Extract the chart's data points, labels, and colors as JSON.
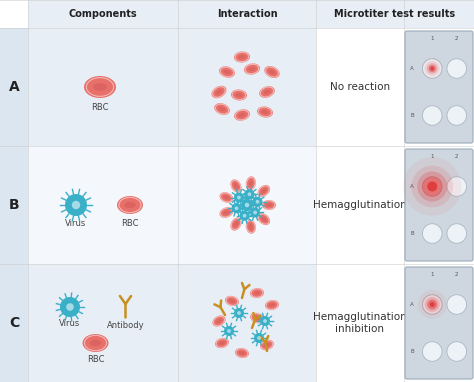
{
  "bg_color": "#ffffff",
  "header_bg": "#e8eef6",
  "row_a_bg": "#e8eef6",
  "row_b_bg": "#f4f7fb",
  "row_c_bg": "#e8eef6",
  "label_col_bg": "#dce6f0",
  "row_labels": [
    "A",
    "B",
    "C"
  ],
  "col_headers": [
    "Components",
    "Interaction",
    "Microtiter test results"
  ],
  "result_labels": [
    "No reaction",
    "Hemagglutination",
    "Hemagglutination\ninhibition"
  ],
  "rbc_color": "#e8706a",
  "rbc_inner": "#c45050",
  "virus_color": "#3ab0c8",
  "antibody_color": "#c89020",
  "well_plate_bg": "#ced6df",
  "well_color": "#edf2f7",
  "well_border": "#aab8c5"
}
